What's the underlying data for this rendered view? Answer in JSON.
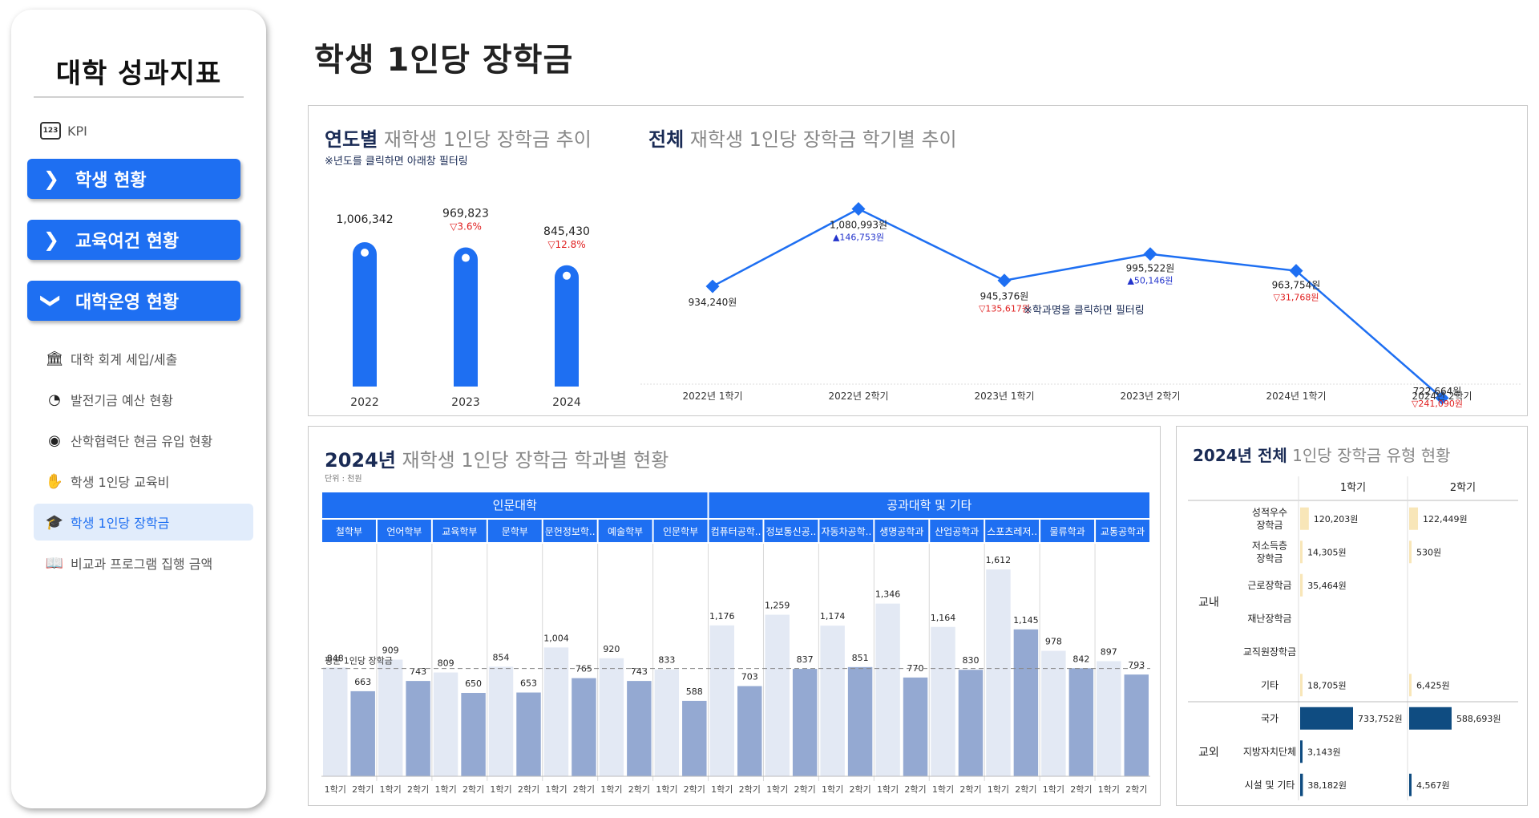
{
  "sidebar": {
    "title": "대학 성과지표",
    "kpi_label": "KPI",
    "nav": [
      {
        "label": "학생 현황",
        "icon": "chevron-right-icon"
      },
      {
        "label": "교육여건 현황",
        "icon": "chevron-right-icon"
      },
      {
        "label": "대학운영 현황",
        "icon": "chevron-down-icon"
      }
    ],
    "sub": [
      {
        "label": "대학 회계 세입/세출",
        "icon": "bank-icon"
      },
      {
        "label": "발전기금 예산 현황",
        "icon": "pie-chart-icon"
      },
      {
        "label": "산학협력단 현금 유입 현황",
        "icon": "cash-icon"
      },
      {
        "label": "학생 1인당 교육비",
        "icon": "hand-coin-icon"
      },
      {
        "label": "학생 1인당 장학금",
        "icon": "graduation-cap-coin-icon"
      },
      {
        "label": "비교과 프로그램 집행 금액",
        "icon": "book-coin-icon"
      }
    ],
    "active_index": 4
  },
  "page_title": "학생 1인당 장학금",
  "yearly": {
    "title_bold": "연도별",
    "title_rest": " 재학생 1인당 장학금 추이",
    "note": "※년도를 클릭하면 아래창 필터링",
    "chart_data": {
      "type": "bar",
      "categories": [
        "2022",
        "2023",
        "2024"
      ],
      "values": [
        1006342,
        969823,
        845430
      ],
      "value_labels": [
        "1,006,342",
        "969,823",
        "845,430"
      ],
      "change_labels": [
        "",
        "▽3.6%",
        "▽12.8%"
      ],
      "ylim": [
        0,
        1100000
      ],
      "color": "#1e6ff2"
    }
  },
  "semester": {
    "title_bold": "전체",
    "title_rest": " 재학생 1인당 장학금 학기별 추이",
    "note": "※학과명을 클릭하면 필터링",
    "chart_data": {
      "type": "line",
      "categories": [
        "2022년 1학기",
        "2022년 2학기",
        "2023년 1학기",
        "2023년 2학기",
        "2024년 1학기",
        "2024년 2학기"
      ],
      "values": [
        934240,
        1080993,
        945376,
        995522,
        963754,
        722664
      ],
      "value_labels": [
        "934,240원",
        "1,080,993원",
        "945,376원",
        "995,522원",
        "963,754원",
        "722,664원"
      ],
      "change_labels": [
        "",
        "▲146,753원",
        "▽135,617원",
        "▲50,146원",
        "▽31,768원",
        "▽241,090원"
      ],
      "change_dirs": [
        "",
        "up",
        "down",
        "up",
        "down",
        "down"
      ],
      "color": "#1e6ff2",
      "up_color": "#2233cc",
      "down_color": "#e02020"
    }
  },
  "dept": {
    "title_bold": "2024년",
    "title_rest": " 재학생 1인당 장학금 학과별 현황",
    "unit": "단위 : 천원",
    "avg_label": "평균 1인당 장학금",
    "groups": [
      {
        "name": "인문대학",
        "count": 7
      },
      {
        "name": "공과대학 및 기타",
        "count": 8
      }
    ],
    "chart_data": {
      "type": "bar",
      "categories": [
        "철학부",
        "언어학부",
        "교육학부",
        "문학부",
        "문헌정보학..",
        "예술학부",
        "인문학부",
        "컴퓨터공학..",
        "정보통신공..",
        "자동차공학..",
        "생명공학과",
        "산업공학과",
        "스포츠레저..",
        "물류학과",
        "교통공학과"
      ],
      "semester_labels": [
        "1학기",
        "2학기"
      ],
      "series": [
        {
          "name": "1학기",
          "values": [
            848,
            909,
            809,
            854,
            1004,
            920,
            833,
            1176,
            1259,
            1174,
            1346,
            1164,
            1612,
            978,
            897
          ],
          "color": "#e3e9f4"
        },
        {
          "name": "2학기",
          "values": [
            663,
            743,
            650,
            653,
            765,
            743,
            588,
            703,
            837,
            851,
            770,
            830,
            1145,
            842,
            793
          ],
          "color": "#94a9d2"
        }
      ],
      "value_labels_1": [
        "848",
        "909",
        "809",
        "854",
        "1,004",
        "920",
        "833",
        "1,176",
        "1,259",
        "1,174",
        "1,346",
        "1,164",
        "1,612",
        "978",
        "897"
      ],
      "value_labels_2": [
        "663",
        "743",
        "650",
        "653",
        "765",
        "743",
        "588",
        "703",
        "837",
        "851",
        "770",
        "830",
        "1,145",
        "842",
        "793"
      ],
      "average": 840,
      "ylim": [
        0,
        1750
      ]
    }
  },
  "types": {
    "title_bold": "2024년 전체",
    "title_rest": " 1인당 장학금 유형 현황",
    "columns": [
      "1학기",
      "2학기"
    ],
    "groups": [
      {
        "name": "교내",
        "rows": [
          {
            "label": "성적우수\n장학금",
            "v1": 120203,
            "v1_label": "120,203원",
            "v2": 122449,
            "v2_label": "122,449원"
          },
          {
            "label": "저소득층\n장학금",
            "v1": 14305,
            "v1_label": "14,305원",
            "v2": 530,
            "v2_label": "530원"
          },
          {
            "label": "근로장학금",
            "v1": 35464,
            "v1_label": "35,464원",
            "v2": 0,
            "v2_label": ""
          },
          {
            "label": "재난장학금",
            "v1": 0,
            "v1_label": "",
            "v2": 0,
            "v2_label": ""
          },
          {
            "label": "교직원장학금",
            "v1": 0,
            "v1_label": "",
            "v2": 0,
            "v2_label": ""
          },
          {
            "label": "기타",
            "v1": 18705,
            "v1_label": "18,705원",
            "v2": 6425,
            "v2_label": "6,425원"
          }
        ],
        "bar_color": "#f8e6b8"
      },
      {
        "name": "교외",
        "rows": [
          {
            "label": "국가",
            "v1": 733752,
            "v1_label": "733,752원",
            "v2": 588693,
            "v2_label": "588,693원"
          },
          {
            "label": "지방자치단체",
            "v1": 3143,
            "v1_label": "3,143원",
            "v2": 0,
            "v2_label": ""
          },
          {
            "label": "시설 및 기타",
            "v1": 38182,
            "v1_label": "38,182원",
            "v2": 4567,
            "v2_label": "4,567원"
          }
        ],
        "bar_color": "#0f4c81"
      }
    ],
    "max_value": 733752
  }
}
